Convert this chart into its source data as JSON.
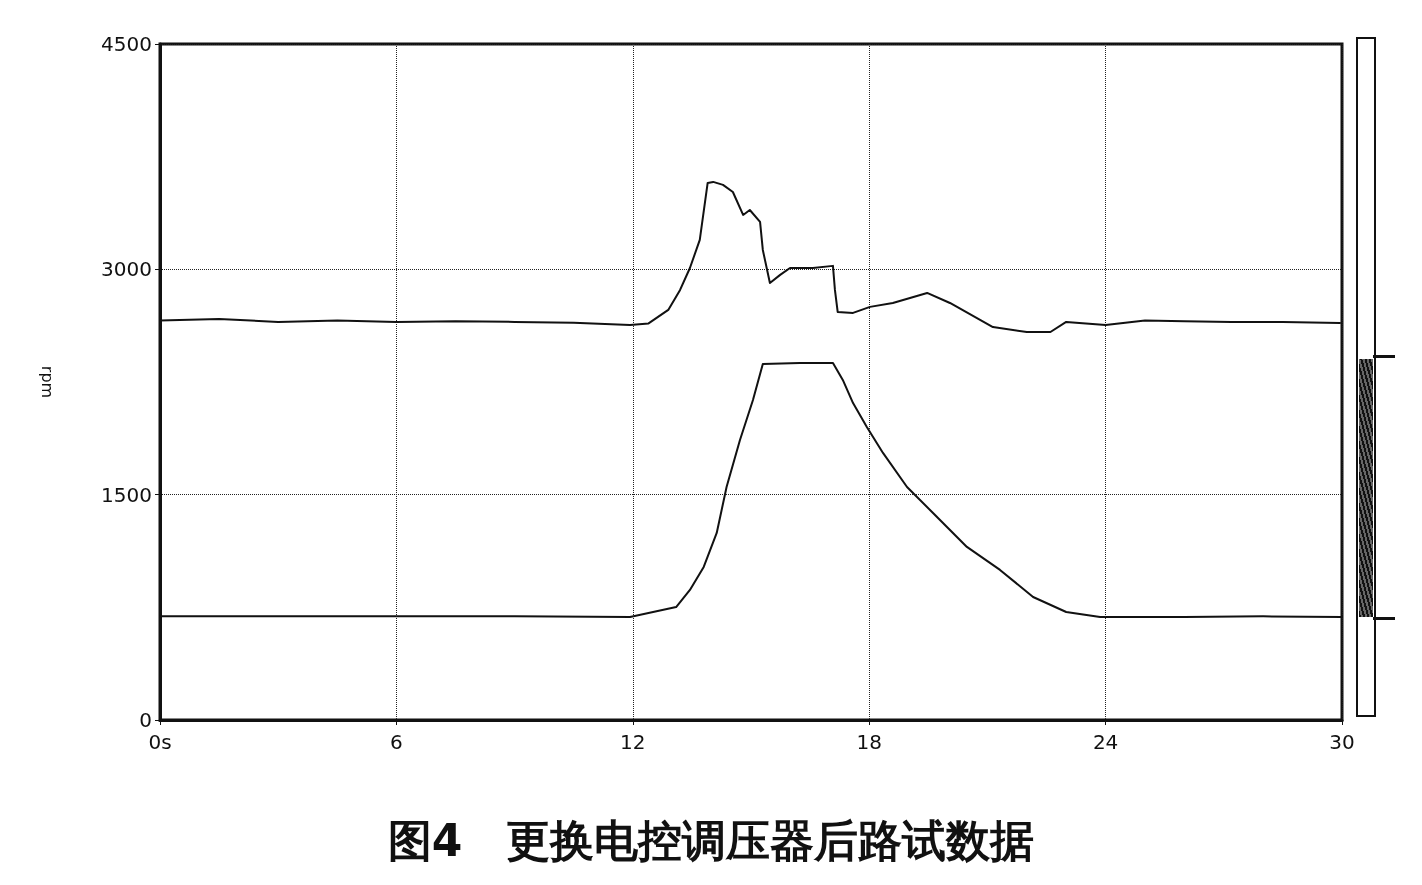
{
  "chart_data": {
    "type": "line",
    "title": "图4　更换电控调压器后路试数据",
    "ylabel": "rpm",
    "xlim": [
      0,
      30
    ],
    "xticks": [
      {
        "value": 0,
        "label": "0s"
      },
      6,
      12,
      18,
      24,
      30
    ],
    "ylim": [
      0,
      4500
    ],
    "yticks": [
      0,
      1500,
      3000,
      4500
    ],
    "grid": true,
    "marker": "none",
    "line_style": "solid",
    "series": [
      {
        "color": "#111111",
        "x": [
          0,
          1.5,
          3,
          4.5,
          6,
          7.5,
          9,
          10.5,
          11.93,
          12.4,
          12.9,
          13.2,
          13.45,
          13.7,
          13.9,
          14.04,
          14.29,
          14.54,
          14.8,
          14.97,
          15.23,
          15.3,
          15.48,
          15.74,
          15.99,
          16.57,
          17.08,
          17.13,
          17.2,
          17.59,
          18.02,
          18.6,
          19.47,
          20.05,
          21.14,
          22.0,
          22.6,
          23.0,
          24.0,
          25.0,
          26.0,
          27.2,
          28.5,
          29.95
        ],
        "values": [
          2660,
          2670,
          2650,
          2660,
          2650,
          2655,
          2650,
          2645,
          2630,
          2640,
          2730,
          2863,
          3009,
          3196,
          3575,
          3582,
          3562,
          3515,
          3362,
          3395,
          3316,
          3129,
          2909,
          2963,
          3009,
          3009,
          3023,
          2863,
          2716,
          2710,
          2750,
          2776,
          2843,
          2776,
          2616,
          2583,
          2583,
          2650,
          2630,
          2660,
          2655,
          2650,
          2650,
          2643
        ]
      },
      {
        "color": "#111111",
        "x": [
          0,
          3,
          6,
          9,
          11.93,
          13.1,
          13.45,
          13.8,
          14.13,
          14.38,
          14.72,
          15.05,
          15.3,
          16.24,
          17.08,
          17.33,
          17.59,
          17.94,
          18.35,
          18.96,
          19.62,
          20.48,
          21.32,
          22.16,
          23.0,
          23.86,
          26,
          28,
          30
        ],
        "values": [
          690,
          690,
          690,
          690,
          686,
          752,
          866,
          1019,
          1245,
          1551,
          1864,
          2130,
          2370,
          2377,
          2377,
          2264,
          2110,
          1951,
          1778,
          1551,
          1378,
          1152,
          999,
          819,
          719,
          686,
          686,
          690,
          686
        ]
      }
    ]
  }
}
